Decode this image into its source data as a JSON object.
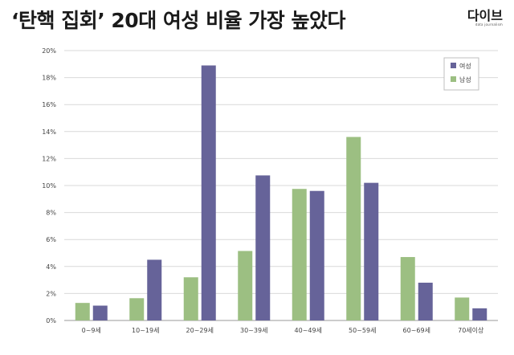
{
  "header": {
    "title": "‘탄핵 집회’ 20대 여성 비율 가장 높았다",
    "logo_text": "다이브",
    "logo_sub": "data journalism"
  },
  "colors": {
    "female": "#666399",
    "male": "#9cbf82",
    "grid": "#d9d9d9",
    "axis": "#999999"
  },
  "chart_data": {
    "type": "bar",
    "title": "",
    "xlabel": "",
    "ylabel": "",
    "categories": [
      "0~9세",
      "10~19세",
      "20~29세",
      "30~39세",
      "40~49세",
      "50~59세",
      "60~69세",
      "70세이상"
    ],
    "ylim": [
      0,
      20
    ],
    "y_ticks": [
      "0%",
      "2%",
      "4%",
      "6%",
      "8%",
      "10%",
      "12%",
      "14%",
      "16%",
      "18%",
      "20%"
    ],
    "grid": true,
    "legend_position": "top-right",
    "series": [
      {
        "name": "남성",
        "color": "#9cbf82",
        "values": [
          1.3,
          1.65,
          3.2,
          5.15,
          9.75,
          13.6,
          4.7,
          1.7
        ]
      },
      {
        "name": "여성",
        "color": "#666399",
        "values": [
          1.1,
          4.5,
          18.9,
          10.75,
          9.6,
          10.2,
          2.8,
          0.9
        ]
      }
    ]
  }
}
